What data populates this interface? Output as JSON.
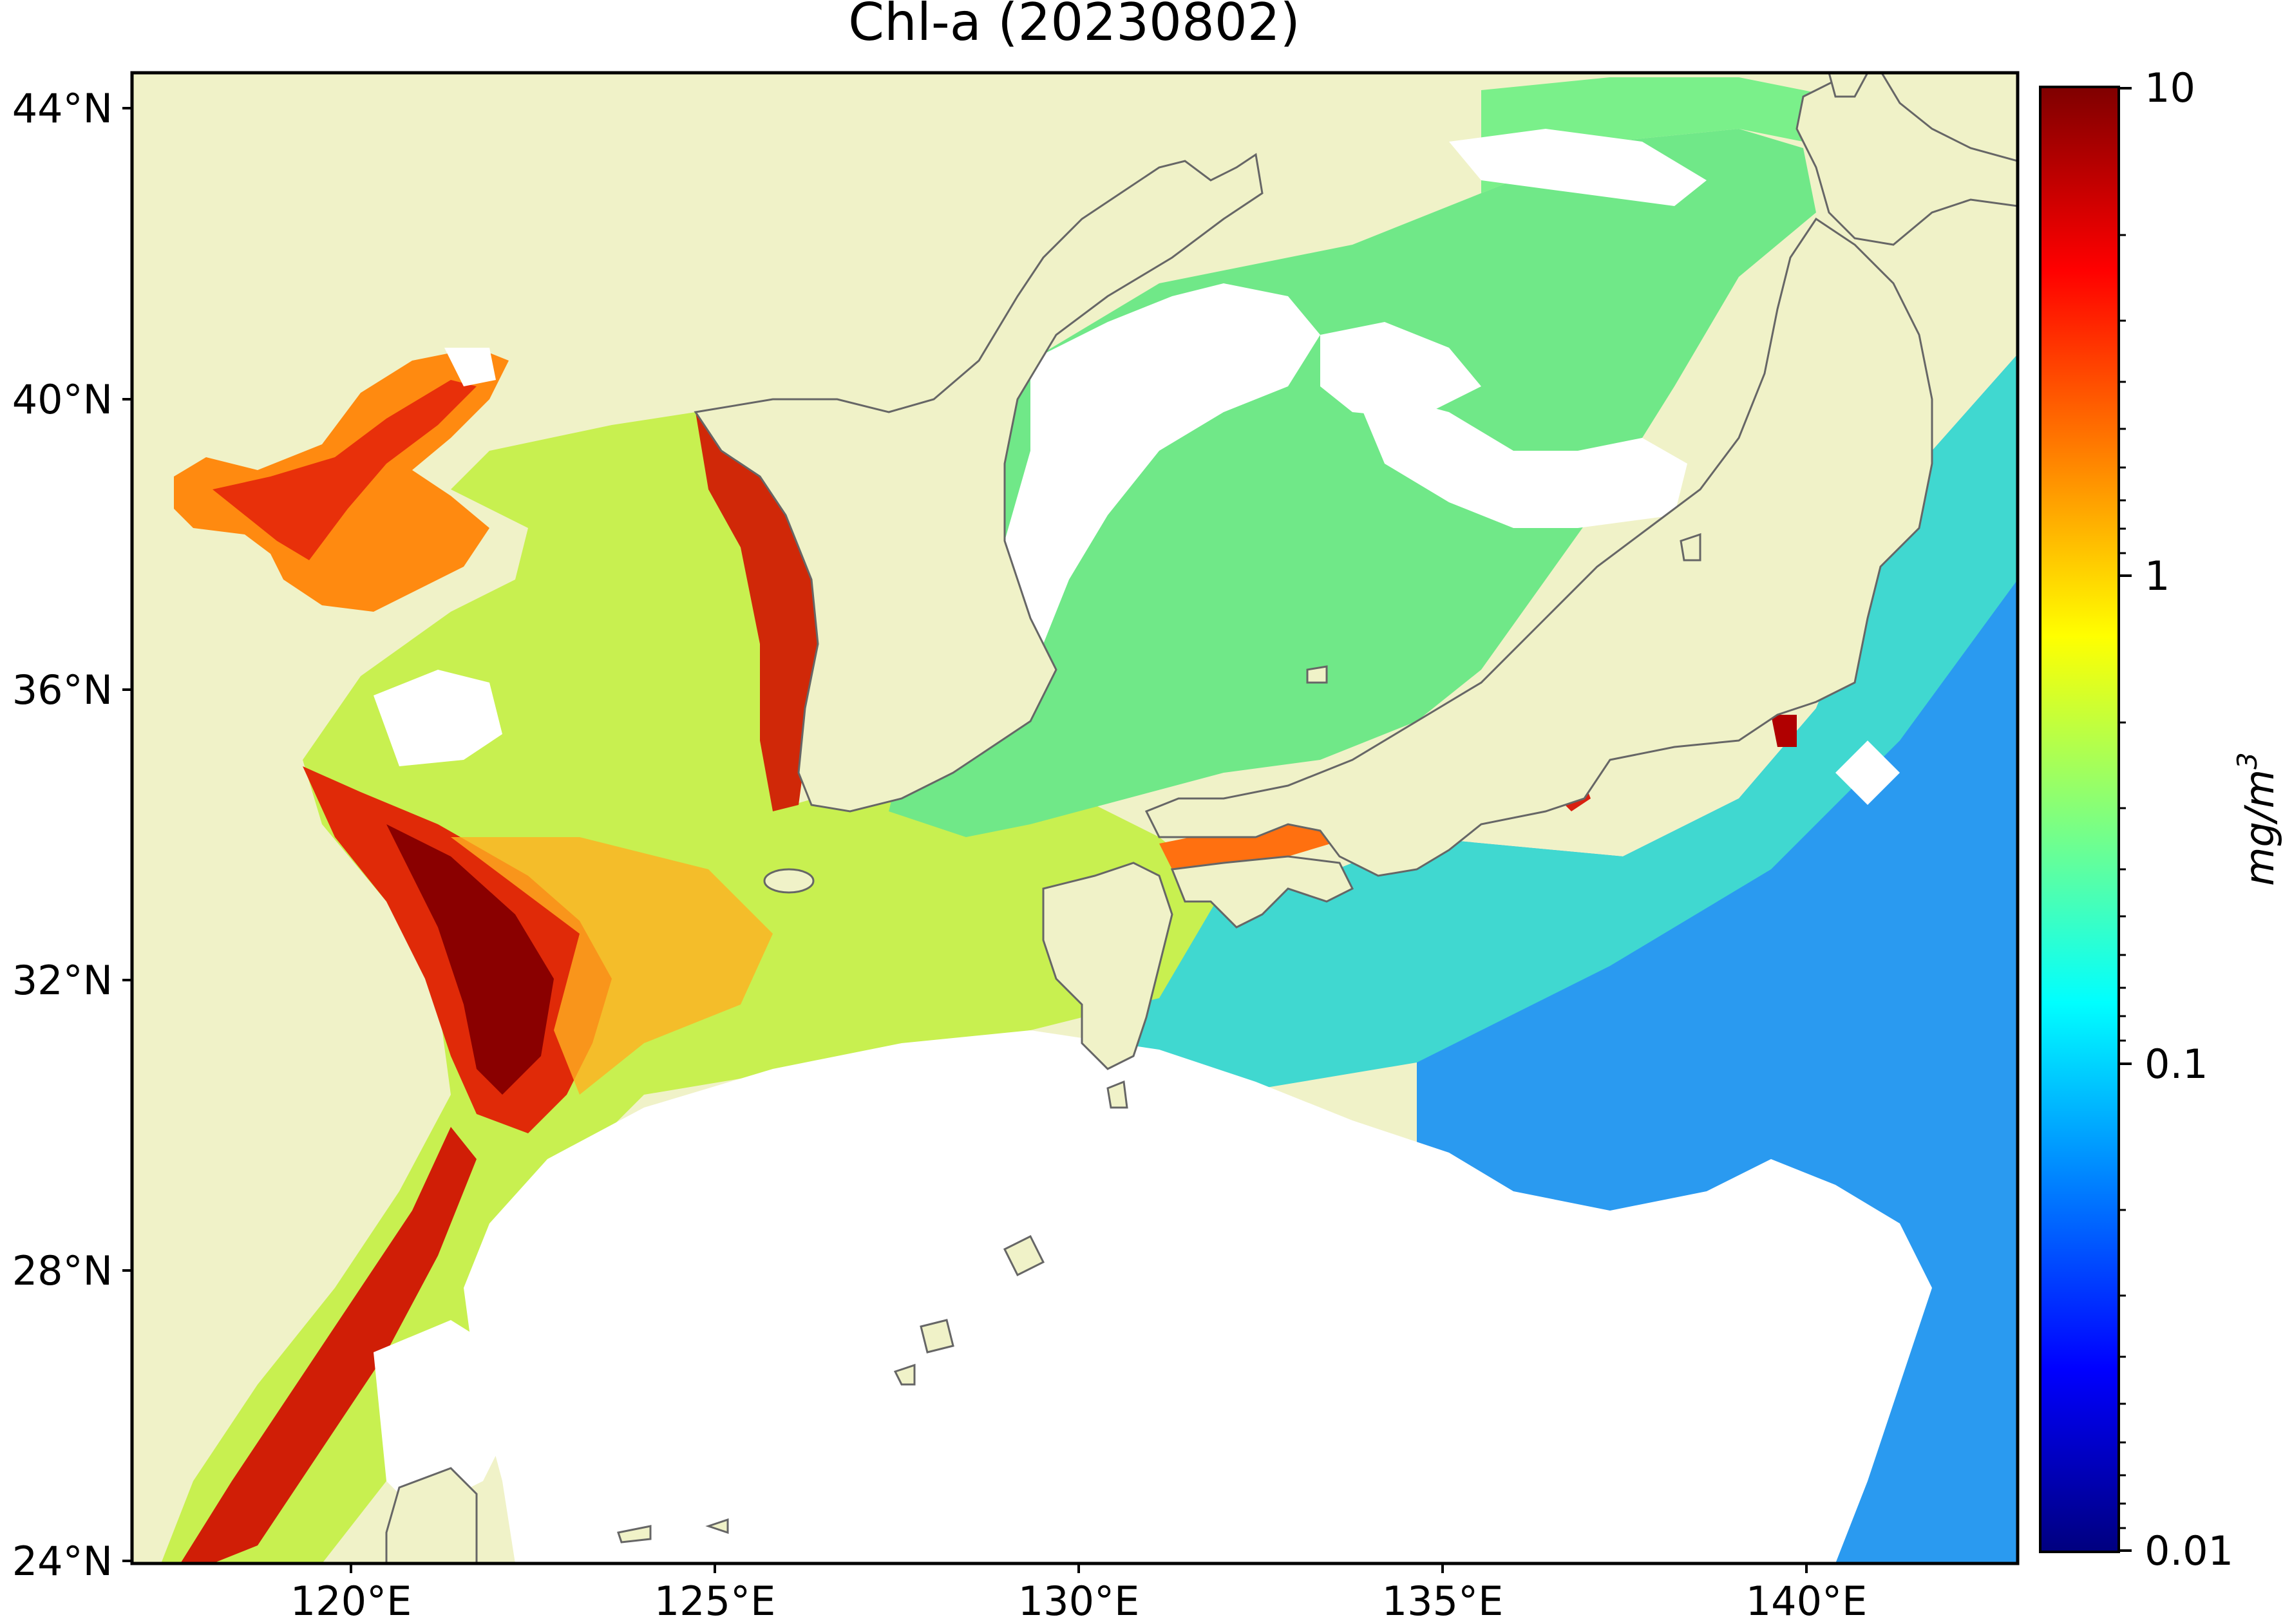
{
  "title": "Chl-a (20230802)",
  "y_ticks": [
    "44°N",
    "40°N",
    "36°N",
    "32°N",
    "28°N",
    "24°N"
  ],
  "x_ticks": [
    "120°E",
    "125°E",
    "130°E",
    "135°E",
    "140°E"
  ],
  "colorbar": {
    "label": "mg/m",
    "label_superscript": "3",
    "ticks": [
      "10",
      "1",
      "0.1",
      "0.01"
    ],
    "scale": "log",
    "range": [
      0.01,
      10
    ],
    "colormap": [
      "#00007f",
      "#0000ff",
      "#007fff",
      "#00ffff",
      "#7fff7f",
      "#ffff00",
      "#ff7f00",
      "#ff0000",
      "#7f0000"
    ]
  },
  "colors": {
    "land": "#f0f2c8",
    "coastline": "#666666",
    "no_data": "#ffffff"
  }
}
